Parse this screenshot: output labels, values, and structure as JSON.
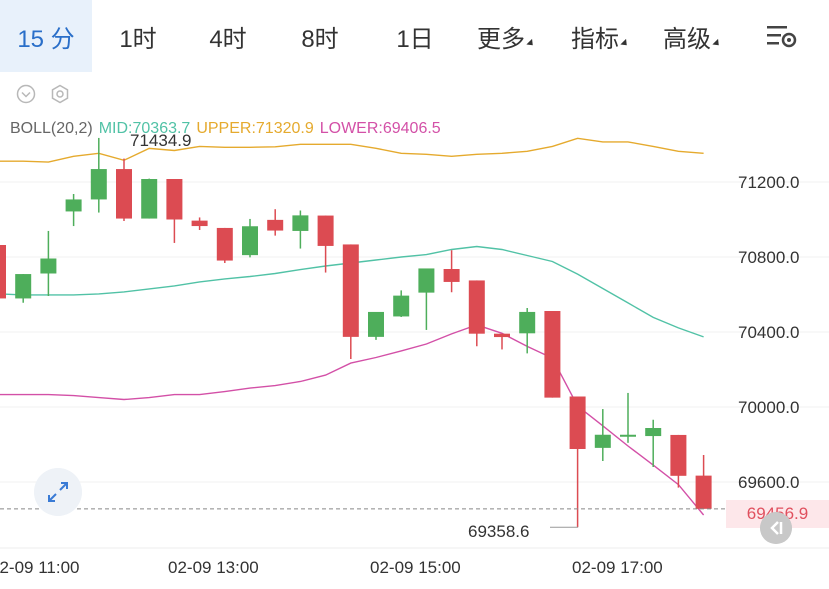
{
  "toolbar": {
    "tabs": [
      {
        "label": "15 分",
        "active": true
      },
      {
        "label": "1时",
        "active": false
      },
      {
        "label": "4时",
        "active": false
      },
      {
        "label": "8时",
        "active": false
      },
      {
        "label": "1日",
        "active": false
      },
      {
        "label": "更多",
        "active": false,
        "dropdown": true
      },
      {
        "label": "指标",
        "active": false,
        "dropdown": true
      },
      {
        "label": "高级",
        "active": false,
        "dropdown": true
      }
    ],
    "settings_icon": "settings-gear-icon"
  },
  "indicator_legend": {
    "name": "BOLL(20,2)",
    "mid": "MID:70363.7",
    "upper": "UPPER:71320.9",
    "lower": "LOWER:69406.5"
  },
  "colors": {
    "up": "#4eae5b",
    "down": "#dc4b52",
    "mid": "#51c2a6",
    "upper": "#e5aa2e",
    "lower": "#d350a7",
    "active_tab_bg": "#e8f1fb",
    "active_tab_text": "#2a6fc9"
  },
  "current_price": "69456.9",
  "chart_data": {
    "type": "candlestick",
    "y_ticks": [
      "71200.0",
      "70800.0",
      "70400.0",
      "70000.0",
      "69600.0"
    ],
    "x_ticks": [
      "02-09 11:00",
      "02-09 13:00",
      "02-09 15:00",
      "02-09 17:00"
    ],
    "high_label": "71434.9",
    "low_label": "69358.6",
    "ylim": [
      69330,
      71570
    ],
    "candles": [
      {
        "o": 70864,
        "h": 70864,
        "c": 70579,
        "l": 70579
      },
      {
        "o": 70579,
        "h": 70709,
        "c": 70709,
        "l": 70556
      },
      {
        "o": 70712,
        "h": 70939,
        "c": 70792,
        "l": 70592
      },
      {
        "o": 71043,
        "h": 71136,
        "c": 71107,
        "l": 70965
      },
      {
        "o": 71107,
        "h": 71435,
        "c": 71269,
        "l": 71037
      },
      {
        "o": 71269,
        "h": 71325,
        "c": 71005,
        "l": 70992
      },
      {
        "o": 71005,
        "h": 71218,
        "c": 71216,
        "l": 71005
      },
      {
        "o": 71216,
        "h": 71216,
        "c": 71000,
        "l": 70875
      },
      {
        "o": 70994,
        "h": 71011,
        "c": 70965,
        "l": 70944
      },
      {
        "o": 70955,
        "h": 70955,
        "c": 70781,
        "l": 70768
      },
      {
        "o": 70810,
        "h": 71003,
        "c": 70964,
        "l": 70798
      },
      {
        "o": 70998,
        "h": 71055,
        "c": 70941,
        "l": 70914
      },
      {
        "o": 70939,
        "h": 71048,
        "c": 71022,
        "l": 70845
      },
      {
        "o": 71021,
        "h": 71021,
        "c": 70859,
        "l": 70717
      },
      {
        "o": 70867,
        "h": 70867,
        "c": 70374,
        "l": 70256
      },
      {
        "o": 70374,
        "h": 70505,
        "c": 70507,
        "l": 70358
      },
      {
        "o": 70483,
        "h": 70622,
        "c": 70594,
        "l": 70480
      },
      {
        "o": 70610,
        "h": 70736,
        "c": 70739,
        "l": 70411
      },
      {
        "o": 70736,
        "h": 70836,
        "c": 70667,
        "l": 70612
      },
      {
        "o": 70675,
        "h": 70675,
        "c": 70391,
        "l": 70324
      },
      {
        "o": 70391,
        "h": 70391,
        "c": 70373,
        "l": 70307
      },
      {
        "o": 70393,
        "h": 70528,
        "c": 70507,
        "l": 70286
      },
      {
        "o": 70512,
        "h": 70512,
        "c": 70050,
        "l": 70050
      },
      {
        "o": 70056,
        "h": 70056,
        "c": 69776,
        "l": 69358.6
      },
      {
        "o": 69782,
        "h": 69989,
        "c": 69852,
        "l": 69712
      },
      {
        "o": 69852,
        "h": 70075,
        "c": 69852,
        "l": 69809
      },
      {
        "o": 69845,
        "h": 69932,
        "c": 69888,
        "l": 69680
      },
      {
        "o": 69851,
        "h": 69851,
        "c": 69633,
        "l": 69570
      },
      {
        "o": 69634,
        "h": 69744,
        "c": 69456.9,
        "l": 69456.9
      }
    ],
    "boll_upper": [
      71311,
      71311,
      71306,
      71337,
      71353,
      71316,
      71379,
      71368,
      71390,
      71385,
      71385,
      71388,
      71401,
      71401,
      71401,
      71380,
      71353,
      71348,
      71337,
      71348,
      71353,
      71364,
      71390,
      71433,
      71414,
      71414,
      71390,
      71364,
      71353
    ],
    "boll_mid": [
      70603,
      70598,
      70598,
      70598,
      70603,
      70614,
      70630,
      70646,
      70667,
      70683,
      70696,
      70712,
      70733,
      70752,
      70768,
      70784,
      70800,
      70813,
      70840,
      70856,
      70840,
      70808,
      70776,
      70709,
      70632,
      70555,
      70478,
      70422,
      70374
    ],
    "boll_lower": [
      70066,
      70066,
      70066,
      70061,
      70050,
      70040,
      70050,
      70066,
      70066,
      70082,
      70101,
      70114,
      70136,
      70170,
      70234,
      70264,
      70299,
      70336,
      70390,
      70438,
      70393,
      70323,
      70261,
      70005,
      69900,
      69792,
      69690,
      69586,
      69424
    ]
  }
}
